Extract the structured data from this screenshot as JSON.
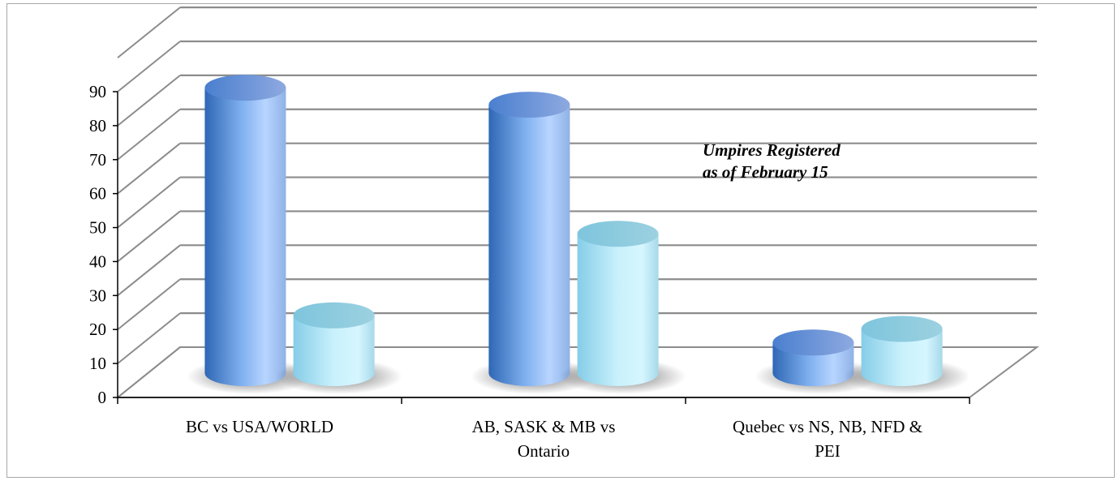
{
  "chart_data": {
    "type": "bar",
    "style": "3d-cylinder",
    "categories": [
      [
        "BC vs USA/WORLD"
      ],
      [
        "AB, SASK & MB vs",
        "Ontario"
      ],
      [
        "Quebec vs NS, NB, NFD &",
        "PEI"
      ]
    ],
    "series": [
      {
        "values": [
          84,
          79,
          9
        ],
        "color": "#5b8fd6"
      },
      {
        "values": [
          17,
          41,
          13
        ],
        "color": "#a9e3f5"
      }
    ],
    "ylim": [
      0,
      90
    ],
    "yticks": [
      "0",
      "10",
      "20",
      "30",
      "40",
      "50",
      "60",
      "70",
      "80",
      "90"
    ],
    "grid": true,
    "annotation": [
      "Umpires Registered",
      "as of February 15"
    ]
  }
}
